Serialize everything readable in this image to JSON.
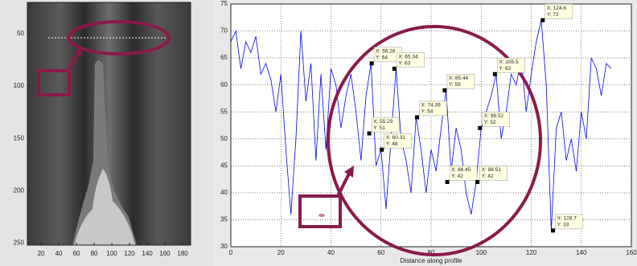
{
  "chart_data": [
    {
      "type": "image",
      "xlim": [
        4.5,
        189
      ],
      "ylim": [
        20,
        252
      ],
      "xticks": [
        20,
        40,
        60,
        80,
        100,
        120,
        140,
        160,
        180
      ],
      "yticks": [
        50,
        100,
        150,
        200,
        250
      ]
    },
    {
      "type": "line",
      "x_label": "Distance along profile",
      "xlim": [
        0,
        160
      ],
      "ylim": [
        30,
        75
      ],
      "xticks": [
        0,
        20,
        40,
        60,
        80,
        100,
        120,
        140,
        160
      ],
      "yticks": [
        30,
        35,
        40,
        45,
        50,
        55,
        60,
        65,
        70,
        75
      ],
      "grid": true,
      "series": [
        {
          "color": "#0000ff",
          "x": [
            0,
            2,
            4,
            6,
            8,
            10,
            12,
            14,
            16,
            18,
            20,
            22,
            24,
            26,
            28,
            30,
            32,
            34,
            36,
            38,
            40,
            42,
            44,
            46,
            48,
            50,
            52,
            54,
            56,
            58,
            60,
            62,
            64,
            66,
            68,
            70,
            72,
            74,
            76,
            78,
            80,
            82,
            84,
            86,
            88,
            90,
            92,
            94,
            96,
            98,
            100,
            102,
            104,
            106,
            108,
            110,
            112,
            114,
            116,
            118,
            120,
            122,
            124,
            126,
            128,
            130,
            132,
            134,
            136,
            138,
            140,
            142,
            144,
            146,
            148,
            150,
            152
          ],
          "values": [
            68,
            70,
            63,
            68,
            66,
            69,
            62,
            64,
            61,
            55,
            62,
            48,
            36,
            50,
            70,
            57,
            64,
            46,
            62,
            48,
            63,
            60,
            52,
            58,
            62,
            55,
            46,
            58,
            64,
            45,
            48,
            37,
            50,
            63,
            50,
            46,
            40,
            54,
            48,
            40,
            48,
            44,
            52,
            59,
            44,
            52,
            48,
            40,
            36,
            42,
            52,
            55,
            58,
            62,
            50,
            55,
            62,
            60,
            65,
            55,
            62,
            68,
            72,
            60,
            33,
            52,
            55,
            46,
            50,
            44,
            55,
            50,
            65,
            63,
            58,
            64,
            63
          ]
        }
      ],
      "data_tips": [
        {
          "x": 56.28,
          "y": 64,
          "text": [
            "X: 56.28",
            "Y: 64"
          ]
        },
        {
          "x": 55.29,
          "y": 51,
          "text": [
            "X: 55.29",
            "Y: 51"
          ]
        },
        {
          "x": 60.31,
          "y": 48,
          "text": [
            "X: 60.31",
            "Y: 48"
          ]
        },
        {
          "x": 65.34,
          "y": 63,
          "text": [
            "X: 65.34",
            "Y: 63"
          ]
        },
        {
          "x": 74.39,
          "y": 54,
          "text": [
            "X: 74.39",
            "Y: 54"
          ]
        },
        {
          "x": 85.44,
          "y": 59,
          "text": [
            "X: 85.44",
            "Y: 59"
          ]
        },
        {
          "x": 86.45,
          "y": 42,
          "text": [
            "X: 86.45",
            "Y: 42"
          ]
        },
        {
          "x": 98.51,
          "y": 42,
          "text": [
            "X: 98.51",
            "Y: 42"
          ]
        },
        {
          "x": 99.52,
          "y": 52,
          "text": [
            "X: 99.52",
            "Y: 52"
          ]
        },
        {
          "x": 105.5,
          "y": 62,
          "text": [
            "X: 105.5",
            "Y: 62"
          ]
        },
        {
          "x": 124.6,
          "y": 72,
          "text": [
            "X: 124.6",
            "Y: 72"
          ]
        },
        {
          "x": 128.7,
          "y": 33,
          "text": [
            "X: 128.7",
            "Y: 33"
          ]
        }
      ]
    }
  ]
}
